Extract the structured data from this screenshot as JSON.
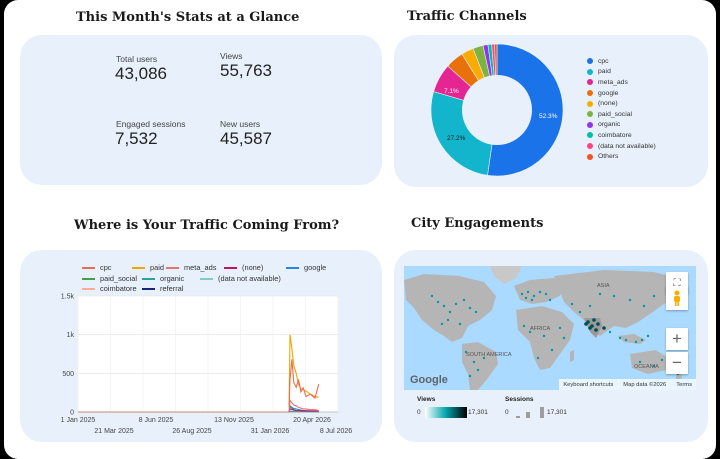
{
  "stats": {
    "title": "This Month's Stats at a Glance",
    "total_users_label": "Total users",
    "total_users_value": "43,086",
    "views_label": "Views",
    "views_value": "55,763",
    "engaged_sessions_label": "Engaged sessions",
    "engaged_sessions_value": "7,532",
    "new_users_label": "New users",
    "new_users_value": "45,587"
  },
  "traffic_channels": {
    "title": "Traffic Channels",
    "legend": [
      {
        "label": "cpc",
        "color": "#1a73e8"
      },
      {
        "label": "paid",
        "color": "#12b5cb"
      },
      {
        "label": "meta_ads",
        "color": "#e52592"
      },
      {
        "label": "google",
        "color": "#e8710a"
      },
      {
        "label": "(none)",
        "color": "#f9ab00"
      },
      {
        "label": "paid_social",
        "color": "#7cb342"
      },
      {
        "label": "organic",
        "color": "#9334e6"
      },
      {
        "label": "coimbatore",
        "color": "#00bfa5"
      },
      {
        "label": "(data not available)",
        "color": "#ff4081"
      },
      {
        "label": "Others",
        "color": "#f4511e"
      }
    ],
    "slice_labels": {
      "cpc": "52.3%",
      "paid": "27.2%",
      "meta_ads": "7.1%"
    }
  },
  "chart_data": [
    {
      "type": "pie",
      "title": "Traffic Channels",
      "labels": [
        "cpc",
        "paid",
        "meta_ads",
        "google",
        "(none)",
        "paid_social",
        "organic",
        "coimbatore",
        "(data not available)",
        "Others"
      ],
      "values": [
        52.3,
        27.2,
        7.1,
        4.5,
        3.0,
        2.5,
        1.2,
        0.9,
        0.7,
        0.6
      ]
    },
    {
      "type": "line",
      "title": "Where is Your Traffic Coming From?",
      "ylim": [
        0,
        1500
      ],
      "yticks": [
        "0",
        "500",
        "1k",
        "1.5k"
      ],
      "xticks_top": [
        "1 Jan 2025",
        "8 Jun 2025",
        "13 Nov 2025",
        "20 Apr 2026"
      ],
      "xticks_bottom": [
        "21 Mar 2025",
        "26 Aug 2025",
        "31 Jan 2026",
        "8 Jul 2026"
      ],
      "x": [
        "2026-03-26",
        "2026-03-28",
        "2026-04-01",
        "2026-04-05",
        "2026-04-10",
        "2026-04-15",
        "2026-04-20",
        "2026-04-25",
        "2026-05-01",
        "2026-05-10",
        "2026-05-20",
        "2026-05-28"
      ],
      "series": [
        {
          "name": "cpc",
          "color": "#ef6c4f",
          "values": [
            60,
            420,
            680,
            380,
            320,
            420,
            260,
            310,
            200,
            230,
            180,
            360
          ]
        },
        {
          "name": "paid",
          "color": "#f0a500",
          "values": [
            80,
            1000,
            820,
            600,
            500,
            360,
            300,
            290,
            270,
            230,
            200,
            190
          ]
        },
        {
          "name": "meta_ads",
          "color": "#e57373",
          "values": [
            10,
            150,
            120,
            90,
            80,
            60,
            50,
            40,
            40,
            30,
            30,
            20
          ]
        },
        {
          "name": "(none)",
          "color": "#c51162",
          "values": [
            5,
            40,
            35,
            25,
            20,
            20,
            15,
            15,
            10,
            10,
            10,
            10
          ]
        },
        {
          "name": "google",
          "color": "#1e88e5",
          "values": [
            5,
            80,
            60,
            45,
            40,
            30,
            25,
            20,
            20,
            15,
            15,
            10
          ]
        },
        {
          "name": "paid_social",
          "color": "#43a047",
          "values": [
            5,
            70,
            50,
            30,
            20,
            15,
            10,
            10,
            10,
            5,
            5,
            5
          ]
        },
        {
          "name": "organic",
          "color": "#26a69a",
          "values": [
            2,
            10,
            10,
            8,
            6,
            5,
            5,
            5,
            4,
            4,
            3,
            3
          ]
        },
        {
          "name": "(data not available)",
          "color": "#80cbc4",
          "values": [
            1,
            8,
            6,
            5,
            4,
            4,
            3,
            3,
            3,
            2,
            2,
            2
          ]
        },
        {
          "name": "coimbatore",
          "color": "#ffab91",
          "values": [
            1,
            5,
            5,
            4,
            3,
            3,
            3,
            2,
            2,
            2,
            2,
            2
          ]
        },
        {
          "name": "referral",
          "color": "#1a237e",
          "values": [
            1,
            4,
            4,
            3,
            3,
            2,
            2,
            2,
            2,
            1,
            1,
            1
          ]
        }
      ]
    }
  ],
  "traffic_timeline": {
    "title": "Where is Your Traffic Coming From?"
  },
  "city": {
    "title": "City Engagements",
    "map_labels": {
      "asia": "ASIA",
      "africa": "AFRICA",
      "south_america": "SOUTH AMERICA",
      "oceania": "OCEANIA"
    },
    "google_logo": "Google",
    "keyboard_shortcuts": "Keyboard shortcuts",
    "map_data": "Map data ©2026",
    "terms": "Terms",
    "views_label": "Views",
    "views_min": "0",
    "views_max": "17,301",
    "sessions_label": "Sessions",
    "sessions_min": "0",
    "sessions_max": "17,301"
  }
}
